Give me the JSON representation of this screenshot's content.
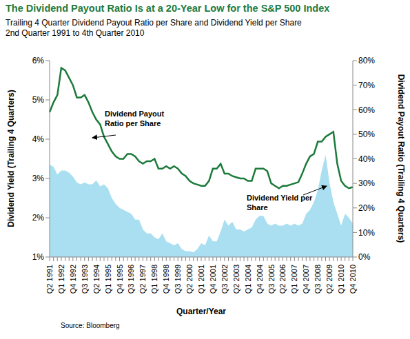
{
  "chart_data": {
    "type": "line",
    "title": "The Dividend Payout Ratio Is at a 20-Year Low for the S&P 500 Index",
    "subtitle": [
      "Trailing 4 Quarter Dividend Payout Ratio per Share and Dividend Yield per Share",
      "2nd Quarter 1991 to 4th Quarter 2010"
    ],
    "x_label": "Quarter/Year",
    "y_label": "Dividend Yield (Trailing 4 Quarters)",
    "y2_label": "Dividend Payout Ratio (Trailing 4 Quarters)",
    "source": "Source: Bloomberg",
    "grid": false,
    "categories": [
      "Q2 1991",
      null,
      null,
      "Q1 1992",
      null,
      null,
      "Q4 1992",
      null,
      null,
      "Q3 1993",
      null,
      null,
      "Q2 1994",
      null,
      null,
      "Q1 1995",
      null,
      null,
      "Q4 1995",
      null,
      null,
      "Q3 1996",
      null,
      null,
      "Q2 1997",
      null,
      null,
      "Q1 1998",
      null,
      null,
      "Q4 1998",
      null,
      null,
      "Q3 1999",
      null,
      null,
      "Q2 2000",
      null,
      null,
      "Q1 2001",
      null,
      null,
      "Q4 2001",
      null,
      null,
      "Q3 2002",
      null,
      null,
      "Q2 2003",
      null,
      null,
      "Q1 2004",
      null,
      null,
      "Q4 2004",
      null,
      null,
      "Q3 2005",
      null,
      null,
      "Q2 2006",
      null,
      null,
      "Q1 2007",
      null,
      null,
      "Q4 2007",
      null,
      null,
      "Q3 2008",
      null,
      null,
      "Q2 2009",
      null,
      null,
      "Q1 2010",
      null,
      null,
      "Q4 2010"
    ],
    "ylim": [
      1,
      6
    ],
    "yticks": [
      {
        "value": 1,
        "label": "1%"
      },
      {
        "value": 2,
        "label": "2%"
      },
      {
        "value": 3,
        "label": "3%"
      },
      {
        "value": 4,
        "label": "4%"
      },
      {
        "value": 5,
        "label": "5%"
      },
      {
        "value": 6,
        "label": "6%"
      }
    ],
    "y2lim": [
      0,
      80
    ],
    "y2ticks": [
      {
        "value": 0,
        "label": "0%"
      },
      {
        "value": 10,
        "label": "10%"
      },
      {
        "value": 20,
        "label": "20%"
      },
      {
        "value": 30,
        "label": "30%"
      },
      {
        "value": 40,
        "label": "40%"
      },
      {
        "value": 50,
        "label": "50%"
      },
      {
        "value": 60,
        "label": "60%"
      },
      {
        "value": 70,
        "label": "70%"
      },
      {
        "value": 80,
        "label": "80%"
      }
    ],
    "series": [
      {
        "name": "Dividend Yield per Share",
        "type": "area",
        "color": "#a9dff0",
        "values": [
          3.35,
          3.3,
          3.1,
          3.2,
          3.2,
          3.15,
          3.05,
          2.9,
          2.85,
          2.9,
          2.85,
          2.85,
          2.95,
          2.8,
          2.85,
          2.75,
          2.5,
          2.35,
          2.25,
          2.2,
          2.15,
          2.1,
          1.95,
          1.95,
          1.7,
          1.6,
          1.6,
          1.5,
          1.45,
          1.6,
          1.4,
          1.35,
          1.3,
          1.35,
          1.2,
          1.15,
          1.15,
          1.12,
          1.2,
          1.35,
          1.3,
          1.55,
          1.4,
          1.4,
          1.65,
          1.95,
          1.8,
          1.9,
          1.7,
          1.7,
          1.65,
          1.7,
          1.75,
          1.95,
          2.05,
          2.05,
          1.85,
          1.8,
          1.85,
          1.8,
          1.8,
          1.85,
          1.8,
          1.85,
          1.8,
          1.85,
          2.1,
          2.2,
          2.4,
          2.7,
          3.2,
          3.6,
          2.9,
          2.4,
          2.1,
          1.8,
          2.1,
          2,
          1.85
        ]
      },
      {
        "name": "Dividend Payout Ratio per Share",
        "type": "line",
        "axis": "y2",
        "color": "#1b7a3a",
        "values": [
          59,
          63,
          66,
          77,
          76,
          73,
          70,
          65,
          65,
          66,
          63,
          59,
          56,
          54,
          49,
          46,
          43,
          41,
          40,
          40,
          42,
          42,
          41,
          39,
          38,
          39,
          39,
          40,
          36,
          36,
          37,
          36,
          37,
          36,
          34,
          33,
          31,
          30,
          29.5,
          29,
          29,
          31,
          36,
          36,
          38,
          34,
          34,
          33,
          32.5,
          32,
          32,
          31,
          31,
          36,
          36,
          36,
          35,
          30,
          29,
          28,
          29,
          29,
          29.5,
          30,
          30.5,
          34,
          38,
          41,
          42,
          47,
          47,
          49,
          50,
          51,
          38,
          31,
          29,
          28,
          28.5
        ]
      }
    ]
  }
}
